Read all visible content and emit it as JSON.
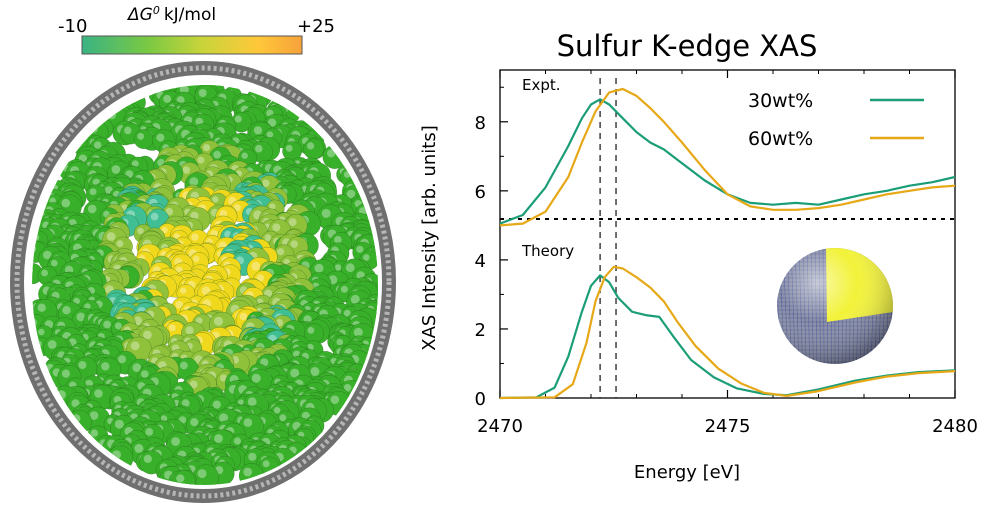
{
  "colorbar": {
    "min_label": "-10",
    "max_label": "+25",
    "quantity_symbol": "ΔG",
    "quantity_superscript": "0",
    "unit": "kJ/mol",
    "colors": [
      "#39b383",
      "#7ac943",
      "#c9d43a",
      "#ffc83a",
      "#f7a23a"
    ]
  },
  "cluster": {
    "colors": {
      "outer": "#38b02a",
      "mid": "#8fc23a",
      "inner_yellow": "#f0d81c",
      "teal": "#3fbf93",
      "shell": "#8c8c8c"
    }
  },
  "chart_data": {
    "type": "line",
    "title": "Sulfur K-edge XAS",
    "xlabel": "Energy [eV]",
    "ylabel": "XAS Intensity [arb. units]",
    "xlim": [
      2470,
      2480
    ],
    "ylim": [
      0,
      9.5
    ],
    "x_ticks": [
      2470,
      2475,
      2480
    ],
    "y_ticks": [
      0,
      2,
      4,
      6,
      8
    ],
    "separator_y": 5.0,
    "vlines": [
      2472.2,
      2472.55
    ],
    "annotations": [
      "Expt.",
      "Theory"
    ],
    "grid": false,
    "legend_position": "top-right",
    "series": [
      {
        "name": "30wt%",
        "color": "#1b9e77",
        "panels": [
          {
            "label": "Expt.",
            "x": [
              2470,
              2470.5,
              2471,
              2471.5,
              2471.8,
              2472.0,
              2472.2,
              2472.4,
              2472.7,
              2473.0,
              2473.3,
              2473.6,
              2474.0,
              2474.5,
              2475.0,
              2475.5,
              2476.0,
              2476.5,
              2477.0,
              2477.5,
              2478.0,
              2478.5,
              2479.0,
              2479.5,
              2480
            ],
            "y": [
              5.05,
              5.3,
              6.1,
              7.3,
              8.1,
              8.5,
              8.65,
              8.5,
              8.1,
              7.7,
              7.4,
              7.2,
              6.8,
              6.3,
              5.9,
              5.65,
              5.6,
              5.65,
              5.6,
              5.75,
              5.9,
              6.0,
              6.15,
              6.25,
              6.4
            ]
          },
          {
            "label": "Theory",
            "x": [
              2470,
              2470.8,
              2471.2,
              2471.5,
              2471.8,
              2472.0,
              2472.2,
              2472.4,
              2472.6,
              2472.9,
              2473.2,
              2473.5,
              2473.8,
              2474.2,
              2474.7,
              2475.2,
              2475.8,
              2476.3,
              2477.0,
              2477.8,
              2478.5,
              2479.2,
              2480
            ],
            "y": [
              0,
              0.02,
              0.3,
              1.2,
              2.5,
              3.25,
              3.55,
              3.35,
              2.9,
              2.5,
              2.4,
              2.35,
              1.8,
              1.1,
              0.6,
              0.28,
              0.12,
              0.08,
              0.25,
              0.5,
              0.65,
              0.75,
              0.8
            ]
          }
        ]
      },
      {
        "name": "60wt%",
        "color": "#e6a817",
        "panels": [
          {
            "label": "Expt.",
            "x": [
              2470,
              2470.5,
              2471,
              2471.5,
              2471.8,
              2472.1,
              2472.4,
              2472.7,
              2473.0,
              2473.3,
              2473.6,
              2474.0,
              2474.5,
              2475.0,
              2475.5,
              2476.0,
              2476.5,
              2477.0,
              2477.5,
              2478.0,
              2478.5,
              2479.0,
              2479.5,
              2480
            ],
            "y": [
              5.0,
              5.05,
              5.4,
              6.4,
              7.4,
              8.3,
              8.85,
              8.95,
              8.75,
              8.4,
              8.0,
              7.4,
              6.6,
              5.9,
              5.55,
              5.45,
              5.45,
              5.5,
              5.6,
              5.75,
              5.9,
              6.0,
              6.1,
              6.15
            ]
          },
          {
            "label": "Theory",
            "x": [
              2470,
              2471.2,
              2471.6,
              2471.9,
              2472.1,
              2472.3,
              2472.5,
              2472.7,
              2473.0,
              2473.3,
              2473.6,
              2473.9,
              2474.3,
              2474.8,
              2475.3,
              2475.8,
              2476.3,
              2477.0,
              2477.8,
              2478.5,
              2479.2,
              2480
            ],
            "y": [
              0,
              0.02,
              0.4,
              1.6,
              2.8,
              3.5,
              3.8,
              3.75,
              3.5,
              3.2,
              2.8,
              2.2,
              1.5,
              0.85,
              0.42,
              0.15,
              0.06,
              0.2,
              0.45,
              0.62,
              0.72,
              0.78
            ]
          }
        ]
      }
    ]
  }
}
